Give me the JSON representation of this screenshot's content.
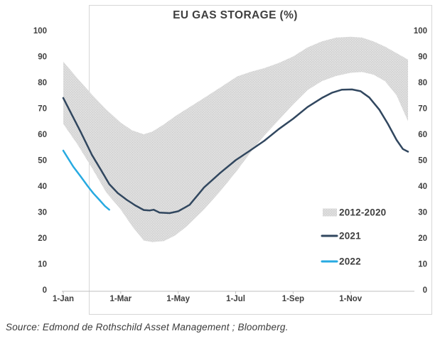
{
  "source_note": "Source: Edmond de Rothschild Asset Management ; Bloomberg.",
  "chart_data": {
    "type": "line",
    "title": "EU GAS STORAGE (%)",
    "subtitle": "",
    "month_scale_note": "x values are months: 0 = 1-Jan, 12 = 31-Dec",
    "x_axis": {
      "tick_labels": [
        "1-Jan",
        "1-Mar",
        "1-May",
        "1-Jul",
        "1-Sep",
        "1-Nov"
      ],
      "tick_months": [
        0,
        2,
        4,
        6,
        8,
        10
      ],
      "range_months": [
        0,
        12
      ],
      "grid": false
    },
    "y_axis": {
      "ticks": [
        0,
        10,
        20,
        30,
        40,
        50,
        60,
        70,
        80,
        90,
        100
      ],
      "range": [
        0,
        100
      ],
      "label_sides": "both",
      "grid": false
    },
    "band": {
      "label": "2012-2020",
      "fill_base": "#e0e0e0",
      "fill_dot": "#c9c9c9",
      "points": [
        [
          0,
          64,
          88
        ],
        [
          0.5,
          56,
          81.5
        ],
        [
          1,
          47,
          75.3
        ],
        [
          1.5,
          37.5,
          69.5
        ],
        [
          2,
          31,
          64.5
        ],
        [
          2.4,
          24.5,
          61.5
        ],
        [
          2.8,
          19,
          60
        ],
        [
          3.1,
          18.4,
          61
        ],
        [
          3.5,
          18.8,
          63.8
        ],
        [
          3.9,
          21,
          67
        ],
        [
          4.3,
          24.5,
          69.8
        ],
        [
          4.9,
          31,
          74
        ],
        [
          5.5,
          38.5,
          78.3
        ],
        [
          6.05,
          46,
          82.3
        ],
        [
          6.55,
          53.5,
          84.2
        ],
        [
          7,
          59.5,
          85.5
        ],
        [
          7.5,
          65.5,
          87.5
        ],
        [
          8,
          71.5,
          90
        ],
        [
          8.5,
          77,
          93.5
        ],
        [
          9,
          80.5,
          95.8
        ],
        [
          9.5,
          82.5,
          97.3
        ],
        [
          10,
          83.7,
          97.6
        ],
        [
          10.4,
          84,
          97.3
        ],
        [
          10.8,
          83,
          95.8
        ],
        [
          11.2,
          80.5,
          93.8
        ],
        [
          11.6,
          75,
          91.3
        ],
        [
          12,
          65,
          88.8
        ]
      ]
    },
    "series": [
      {
        "label": "2021",
        "color": "#31475f",
        "points": [
          [
            0,
            74
          ],
          [
            0.3,
            67.5
          ],
          [
            0.6,
            61
          ],
          [
            1,
            52
          ],
          [
            1.3,
            46.5
          ],
          [
            1.6,
            40.8
          ],
          [
            1.9,
            37.3
          ],
          [
            2.2,
            34.8
          ],
          [
            2.5,
            32.6
          ],
          [
            2.8,
            30.8
          ],
          [
            3.0,
            30.6
          ],
          [
            3.15,
            30.9
          ],
          [
            3.35,
            29.8
          ],
          [
            3.7,
            29.6
          ],
          [
            4.0,
            30.3
          ],
          [
            4.4,
            32.8
          ],
          [
            4.9,
            39.5
          ],
          [
            5.45,
            45
          ],
          [
            6.0,
            50
          ],
          [
            6.5,
            53.7
          ],
          [
            7.0,
            57.5
          ],
          [
            7.5,
            62
          ],
          [
            8.0,
            66
          ],
          [
            8.5,
            70.5
          ],
          [
            9.0,
            74
          ],
          [
            9.35,
            76
          ],
          [
            9.7,
            77.2
          ],
          [
            10.05,
            77.3
          ],
          [
            10.35,
            76.6
          ],
          [
            10.65,
            74.2
          ],
          [
            11.0,
            69.5
          ],
          [
            11.3,
            64
          ],
          [
            11.6,
            57.8
          ],
          [
            11.82,
            54.3
          ],
          [
            12,
            53.3
          ]
        ]
      },
      {
        "label": "2022",
        "color": "#27aae1",
        "points": [
          [
            0,
            53.7
          ],
          [
            0.15,
            51
          ],
          [
            0.35,
            47.5
          ],
          [
            0.6,
            43.8
          ],
          [
            0.85,
            40
          ],
          [
            1.05,
            37.2
          ],
          [
            1.25,
            34.8
          ],
          [
            1.45,
            32.3
          ],
          [
            1.6,
            30.9
          ]
        ]
      }
    ],
    "legend": {
      "position": "inside-right",
      "items": [
        {
          "label": "2012-2020",
          "swatch": "band"
        },
        {
          "label": "2021",
          "swatch": "line",
          "color": "#31475f"
        },
        {
          "label": "2022",
          "swatch": "line",
          "color": "#27aae1"
        }
      ]
    },
    "frame_color": "#d6d6d6",
    "axis_line_color": "#bfbfbf",
    "text_color": "#404040"
  }
}
